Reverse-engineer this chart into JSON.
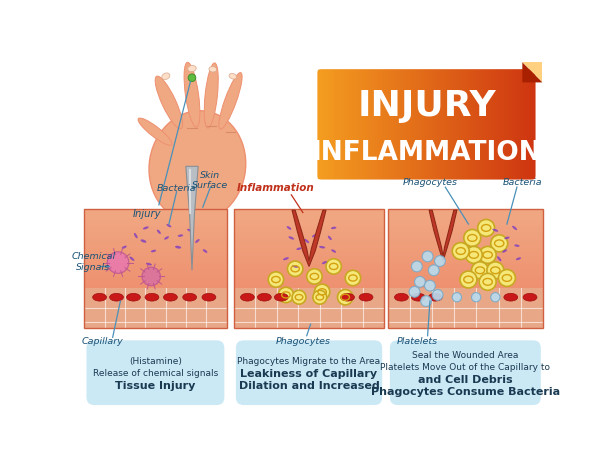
{
  "title_line1": "INJURY",
  "title_line2": "INFLAMMATION",
  "title_color": "#FFFFFF",
  "title_bg_start": "#F5A020",
  "title_bg_end": "#CC3010",
  "bg_color": "#FFFFFF",
  "panel_labels": [
    [
      "Tissue Injury",
      "Release of chemical signals",
      "(Histamine)"
    ],
    [
      "Dilation and Increased",
      "Leakiness of Capillary",
      "Phagocytes Migrate to the Area"
    ],
    [
      "Phagocytes Consume Bacteria",
      "and Cell Debris",
      "Platelets Move Out of the Capillary to",
      "Seal the Wounded Area"
    ]
  ],
  "skin_top": "#F0A882",
  "skin_mid": "#EE9070",
  "skin_deep": "#E87858",
  "cap_bg": "#E8A888",
  "rbc_color": "#C81818",
  "rbc_edge": "#A01010",
  "bacteria_color": "#8844BB",
  "phago_fill": "#F5E878",
  "phago_edge": "#C8A820",
  "phago_nucleus": "#D4A010",
  "platelet_fill": "#B8DCF0",
  "platelet_edge": "#7AAAC8",
  "wound_fill": "#C03828",
  "wound_edge": "#902818",
  "panel_bg": "#CBE8F5",
  "ann_color": "#1A5276",
  "infl_color": "#C0301A",
  "needle_fill": "#B8BEC4",
  "needle_edge": "#888E94",
  "signal_fill": "#E878B0",
  "signal_edge": "#C05890"
}
